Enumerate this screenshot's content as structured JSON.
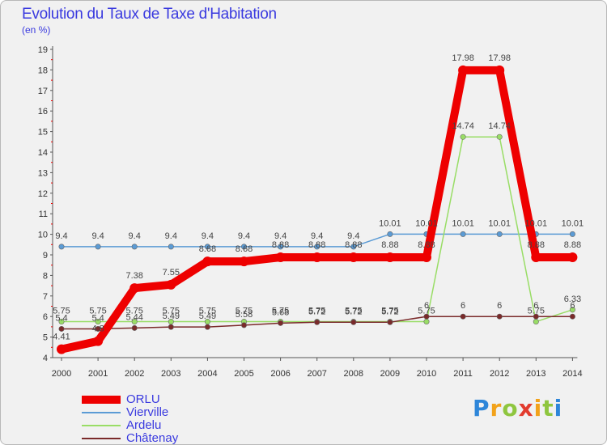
{
  "title": "Evolution du Taux de Taxe d'Habitation",
  "subtitle": "(en %)",
  "logo": {
    "text": "Proxiti",
    "letters": [
      {
        "ch": "P",
        "color": "#2e86d9"
      },
      {
        "ch": "r",
        "color": "#f2a21a"
      },
      {
        "ch": "o",
        "color": "#8fc63f"
      },
      {
        "ch": "x",
        "color": "#e23b2e"
      },
      {
        "ch": "i",
        "color": "#f2a21a"
      },
      {
        "ch": "t",
        "color": "#8fc63f"
      },
      {
        "ch": "i",
        "color": "#2e86d9"
      }
    ]
  },
  "chart_data": {
    "type": "line",
    "title": "Evolution du Taux de Taxe d'Habitation",
    "ylabel": "(en %)",
    "xlabel": "",
    "x": [
      "2000",
      "2001",
      "2002",
      "2003",
      "2004",
      "2005",
      "2006",
      "2007",
      "2008",
      "2009",
      "2010",
      "2011",
      "2012",
      "2013",
      "2014"
    ],
    "ylim": [
      4,
      19
    ],
    "yticks": [
      4,
      5,
      6,
      7,
      8,
      9,
      10,
      11,
      12,
      13,
      14,
      15,
      16,
      17,
      18,
      19
    ],
    "grid": false,
    "legend_position": "bottom-left",
    "series": [
      {
        "name": "ORLU",
        "color": "#ee0000",
        "width": 10,
        "values": [
          4.41,
          4.8,
          7.38,
          7.55,
          8.68,
          8.68,
          8.88,
          8.88,
          8.88,
          8.88,
          8.88,
          17.98,
          17.98,
          8.88,
          8.88
        ],
        "labels": [
          "4.41",
          "4.8",
          "7.38",
          "7.55",
          "8.68",
          "8.68",
          "8.88",
          "8.88",
          "8.88",
          "8.88",
          "8.88",
          "17.98",
          "17.98",
          "8.88",
          "8.88"
        ]
      },
      {
        "name": "Vierville",
        "color": "#5b9bd5",
        "width": 1.5,
        "values": [
          9.4,
          9.4,
          9.4,
          9.4,
          9.4,
          9.4,
          9.4,
          9.4,
          9.4,
          10.01,
          10.01,
          10.01,
          10.01,
          10.01,
          10.01
        ],
        "labels": [
          "9.4",
          "9.4",
          "9.4",
          "9.4",
          "9.4",
          "9.4",
          "9.4",
          "9.4",
          "9.4",
          "10.01",
          "10.01",
          "10.01",
          "10.01",
          "10.01",
          "10.01"
        ]
      },
      {
        "name": "Ardelu",
        "color": "#99dd66",
        "width": 1.5,
        "values": [
          5.75,
          5.75,
          5.75,
          5.75,
          5.75,
          5.75,
          5.75,
          5.75,
          5.75,
          5.75,
          5.75,
          14.74,
          14.74,
          5.75,
          6.33
        ],
        "labels": [
          "5.75",
          "5.75",
          "5.75",
          "5.75",
          "5.75",
          "5.75",
          "5.75",
          "5.75",
          "5.75",
          "5.75",
          "5.75",
          "14.74",
          "14.74",
          "5.75",
          "6.33"
        ]
      },
      {
        "name": "Châtenay",
        "color": "#7a2a2a",
        "width": 1.5,
        "values": [
          5.4,
          5.4,
          5.44,
          5.49,
          5.49,
          5.58,
          5.68,
          5.72,
          5.72,
          5.72,
          6,
          6,
          6,
          6,
          6
        ],
        "labels": [
          "5.4",
          "5.4",
          "5.44",
          "5.49",
          "5.49",
          "5.58",
          "5.68",
          "5.72",
          "5.72",
          "5.72",
          "6",
          "6",
          "6",
          "6",
          "6"
        ]
      }
    ]
  }
}
